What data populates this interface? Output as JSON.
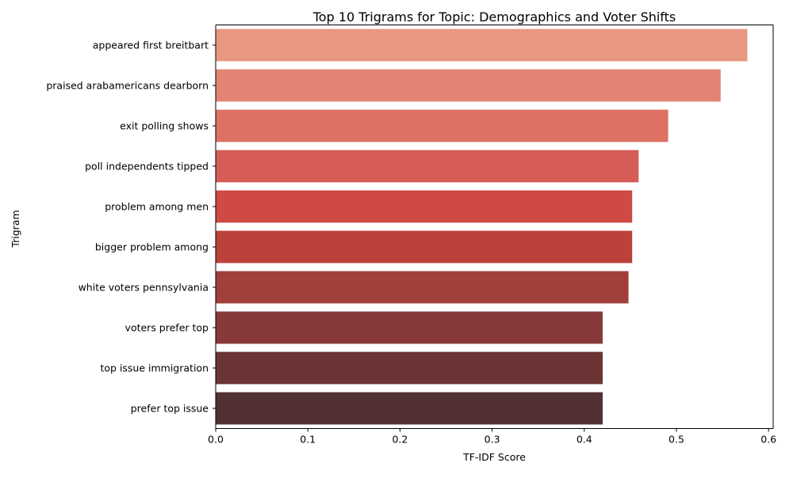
{
  "chart_data": {
    "type": "bar",
    "orientation": "horizontal",
    "title": "Top 10 Trigrams for Topic: Demographics and Voter Shifts",
    "xlabel": "TF-IDF Score",
    "ylabel": "Trigram",
    "xlim": [
      0,
      0.605
    ],
    "xticks": [
      "0.0",
      "0.1",
      "0.2",
      "0.3",
      "0.4",
      "0.5",
      "0.6"
    ],
    "grid": false,
    "categories": [
      "appeared first breitbart",
      "praised arabamericans dearborn",
      "exit polling shows",
      "poll independents tipped",
      "problem among men",
      "bigger problem among",
      "white voters pennsylvania",
      "voters prefer top",
      "top issue immigration",
      "prefer top issue"
    ],
    "values": [
      0.577,
      0.548,
      0.491,
      0.459,
      0.452,
      0.452,
      0.448,
      0.42,
      0.42,
      0.42
    ],
    "colors": [
      "#e89781",
      "#e28474",
      "#dc7164",
      "#d55c57",
      "#ce4a43",
      "#bb423a",
      "#a13f3a",
      "#88393a",
      "#6b3536",
      "#523134"
    ]
  }
}
